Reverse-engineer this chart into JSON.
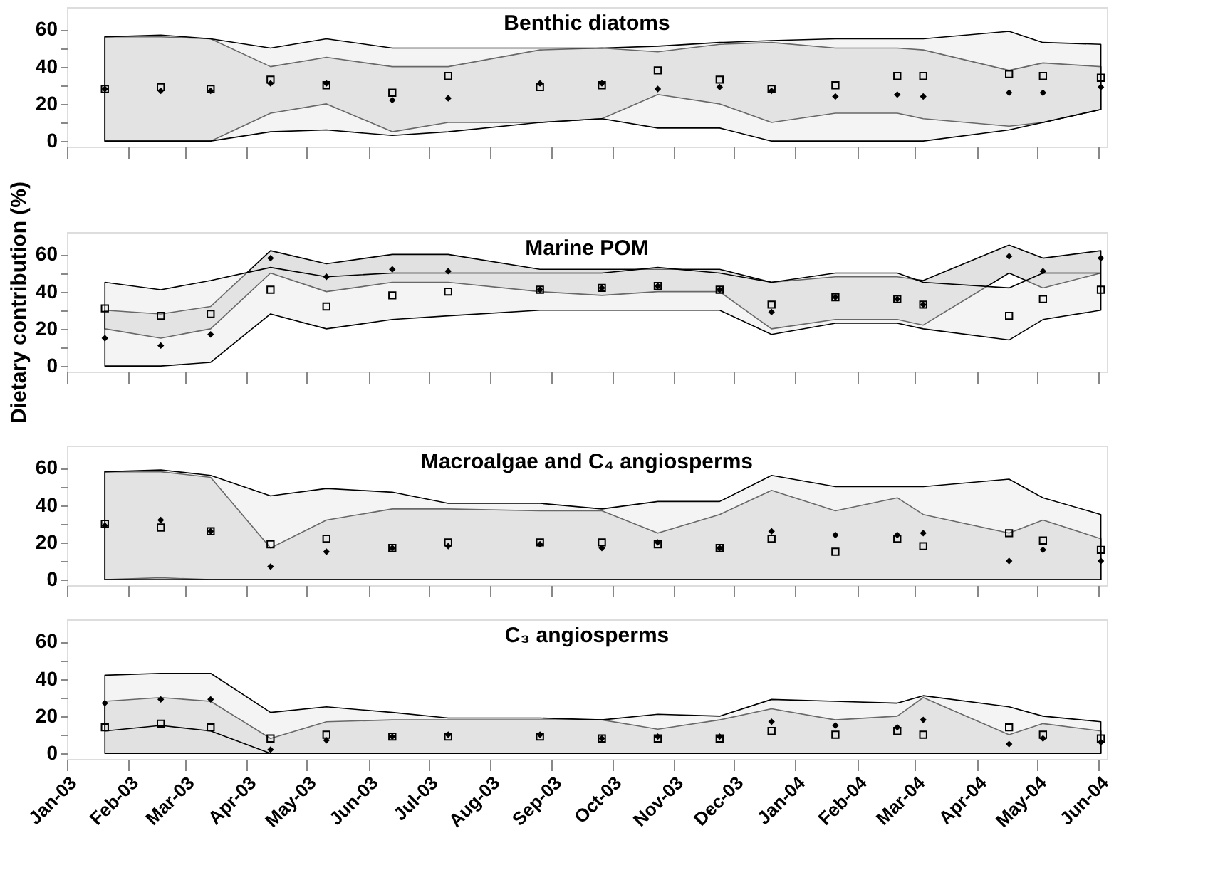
{
  "chart_data": [
    {
      "type": "scatter",
      "title": "Benthic diatoms",
      "x": [
        "2003-01-20",
        "2003-02-17",
        "2003-03-14",
        "2003-04-13",
        "2003-05-11",
        "2003-06-13",
        "2003-07-11",
        "2003-08-26",
        "2003-09-26",
        "2003-10-24",
        "2003-11-24",
        "2003-12-20",
        "2004-01-21",
        "2004-02-21",
        "2004-03-05",
        "2004-04-17",
        "2004-05-04",
        "2004-06-02"
      ],
      "xlim": [
        "2003-01-01",
        "2004-06-05"
      ],
      "xticks": [
        {
          "value": "2003-01-01",
          "label": null
        },
        {
          "value": "2003-02-01",
          "label": null
        },
        {
          "value": "2003-03-01",
          "label": null
        },
        {
          "value": "2003-04-01",
          "label": null
        },
        {
          "value": "2003-05-01",
          "label": null
        },
        {
          "value": "2003-06-01",
          "label": null
        },
        {
          "value": "2003-07-01",
          "label": null
        },
        {
          "value": "2003-08-01",
          "label": null
        },
        {
          "value": "2003-09-01",
          "label": null
        },
        {
          "value": "2003-10-01",
          "label": null
        },
        {
          "value": "2003-11-01",
          "label": null
        },
        {
          "value": "2003-12-01",
          "label": null
        },
        {
          "value": "2004-01-01",
          "label": null
        },
        {
          "value": "2004-02-01",
          "label": null
        },
        {
          "value": "2004-03-01",
          "label": null
        },
        {
          "value": "2004-04-01",
          "label": null
        },
        {
          "value": "2004-05-01",
          "label": null
        },
        {
          "value": "2004-06-01",
          "label": null
        }
      ],
      "ylim": [
        -3,
        72
      ],
      "yticks": [
        0,
        {
          "value": 10,
          "label": null
        },
        20,
        {
          "value": 30,
          "label": null
        },
        40,
        {
          "value": 50,
          "label": null
        },
        60
      ],
      "tick_labels": "y",
      "grid": false,
      "series": [
        {
          "color": "#000000",
          "marker": "diamond",
          "values": [
            28,
            27,
            27,
            31,
            31,
            22,
            23,
            31,
            31,
            28,
            29,
            27,
            24,
            25,
            24,
            26,
            26,
            29
          ],
          "lower": [
            0,
            0,
            0,
            15,
            20,
            5,
            10,
            10,
            12,
            25,
            20,
            10,
            15,
            15,
            12,
            8,
            10,
            17
          ],
          "upper": [
            56,
            56,
            55,
            40,
            45,
            40,
            40,
            49,
            50,
            48,
            52,
            53,
            50,
            50,
            49,
            38,
            42,
            40
          ]
        },
        {
          "color": "#000000",
          "marker": "square",
          "values": [
            28,
            29,
            28,
            33,
            30,
            26,
            35,
            29,
            30,
            38,
            33,
            28,
            30,
            35,
            35,
            36,
            35,
            34
          ],
          "lower": [
            0,
            0,
            0,
            5,
            6,
            3,
            5,
            10,
            12,
            7,
            7,
            0,
            0,
            0,
            0,
            6,
            10,
            17
          ],
          "upper": [
            56,
            57,
            55,
            50,
            55,
            50,
            50,
            50,
            50,
            51,
            53,
            54,
            55,
            55,
            55,
            59,
            53,
            52
          ]
        }
      ]
    },
    {
      "type": "scatter",
      "title": "Marine POM",
      "ylabel": "Dietary contribution (%)",
      "x": [
        "2003-01-20",
        "2003-02-17",
        "2003-03-14",
        "2003-04-13",
        "2003-05-11",
        "2003-06-13",
        "2003-07-11",
        "2003-08-26",
        "2003-09-26",
        "2003-10-24",
        "2003-11-24",
        "2003-12-20",
        "2004-01-21",
        "2004-02-21",
        "2004-03-05",
        "2004-04-17",
        "2004-05-04",
        "2004-06-02"
      ],
      "xlim": [
        "2003-01-01",
        "2004-06-05"
      ],
      "xticks": [
        {
          "value": "2003-01-01",
          "label": null
        },
        {
          "value": "2003-02-01",
          "label": null
        },
        {
          "value": "2003-03-01",
          "label": null
        },
        {
          "value": "2003-04-01",
          "label": null
        },
        {
          "value": "2003-05-01",
          "label": null
        },
        {
          "value": "2003-06-01",
          "label": null
        },
        {
          "value": "2003-07-01",
          "label": null
        },
        {
          "value": "2003-08-01",
          "label": null
        },
        {
          "value": "2003-09-01",
          "label": null
        },
        {
          "value": "2003-10-01",
          "label": null
        },
        {
          "value": "2003-11-01",
          "label": null
        },
        {
          "value": "2003-12-01",
          "label": null
        },
        {
          "value": "2004-01-01",
          "label": null
        },
        {
          "value": "2004-02-01",
          "label": null
        },
        {
          "value": "2004-03-01",
          "label": null
        },
        {
          "value": "2004-04-01",
          "label": null
        },
        {
          "value": "2004-05-01",
          "label": null
        },
        {
          "value": "2004-06-01",
          "label": null
        }
      ],
      "ylim": [
        -3,
        72
      ],
      "yticks": [
        0,
        {
          "value": 10,
          "label": null
        },
        20,
        {
          "value": 30,
          "label": null
        },
        40,
        {
          "value": 50,
          "label": null
        },
        60
      ],
      "tick_labels": "y",
      "grid": false,
      "series": [
        {
          "color": "#000000",
          "marker": "diamond",
          "values": [
            15,
            11,
            17,
            58,
            48,
            52,
            51,
            41,
            42,
            43,
            41,
            29,
            37,
            36,
            33,
            59,
            51,
            58
          ],
          "lower": [
            20,
            15,
            20,
            50,
            40,
            45,
            45,
            40,
            38,
            40,
            40,
            20,
            25,
            25,
            22,
            50,
            42,
            50
          ],
          "upper": [
            30,
            28,
            32,
            62,
            55,
            60,
            60,
            52,
            52,
            52,
            52,
            45,
            48,
            48,
            46,
            65,
            58,
            62
          ]
        },
        {
          "color": "#000000",
          "marker": "square",
          "values": [
            31,
            27,
            28,
            41,
            32,
            38,
            40,
            41,
            42,
            43,
            41,
            33,
            37,
            36,
            33,
            27,
            36,
            41
          ],
          "lower": [
            0,
            0,
            2,
            28,
            20,
            25,
            27,
            30,
            30,
            30,
            30,
            17,
            23,
            23,
            20,
            14,
            25,
            30
          ],
          "upper": [
            45,
            41,
            46,
            53,
            48,
            50,
            50,
            50,
            50,
            53,
            50,
            45,
            50,
            50,
            45,
            42,
            50,
            50
          ]
        }
      ]
    },
    {
      "type": "scatter",
      "title": "Macroalgae and C₄ angiosperms",
      "x": [
        "2003-01-20",
        "2003-02-17",
        "2003-03-14",
        "2003-04-13",
        "2003-05-11",
        "2003-06-13",
        "2003-07-11",
        "2003-08-26",
        "2003-09-26",
        "2003-10-24",
        "2003-11-24",
        "2003-12-20",
        "2004-01-21",
        "2004-02-21",
        "2004-03-05",
        "2004-04-17",
        "2004-05-04",
        "2004-06-02"
      ],
      "xlim": [
        "2003-01-01",
        "2004-06-05"
      ],
      "xticks": [
        {
          "value": "2003-01-01",
          "label": null
        },
        {
          "value": "2003-02-01",
          "label": null
        },
        {
          "value": "2003-03-01",
          "label": null
        },
        {
          "value": "2003-04-01",
          "label": null
        },
        {
          "value": "2003-05-01",
          "label": null
        },
        {
          "value": "2003-06-01",
          "label": null
        },
        {
          "value": "2003-07-01",
          "label": null
        },
        {
          "value": "2003-08-01",
          "label": null
        },
        {
          "value": "2003-09-01",
          "label": null
        },
        {
          "value": "2003-10-01",
          "label": null
        },
        {
          "value": "2003-11-01",
          "label": null
        },
        {
          "value": "2003-12-01",
          "label": null
        },
        {
          "value": "2004-01-01",
          "label": null
        },
        {
          "value": "2004-02-01",
          "label": null
        },
        {
          "value": "2004-03-01",
          "label": null
        },
        {
          "value": "2004-04-01",
          "label": null
        },
        {
          "value": "2004-05-01",
          "label": null
        },
        {
          "value": "2004-06-01",
          "label": null
        }
      ],
      "ylim": [
        -3,
        72
      ],
      "yticks": [
        0,
        {
          "value": 10,
          "label": null
        },
        20,
        {
          "value": 30,
          "label": null
        },
        40,
        {
          "value": 50,
          "label": null
        },
        60
      ],
      "tick_labels": "y",
      "grid": false,
      "series": [
        {
          "color": "#000000",
          "marker": "diamond",
          "values": [
            29,
            32,
            26,
            7,
            15,
            17,
            18,
            19,
            17,
            20,
            17,
            26,
            24,
            24,
            25,
            10,
            16,
            10
          ],
          "lower": [
            0,
            1,
            0,
            0,
            0,
            0,
            0,
            0,
            0,
            0,
            0,
            0,
            0,
            0,
            0,
            0,
            0,
            0
          ],
          "upper": [
            58,
            58,
            55,
            17,
            32,
            38,
            38,
            37,
            37,
            25,
            35,
            48,
            37,
            44,
            35,
            25,
            32,
            22
          ]
        },
        {
          "color": "#000000",
          "marker": "square",
          "values": [
            30,
            28,
            26,
            19,
            22,
            17,
            20,
            20,
            20,
            19,
            17,
            22,
            15,
            22,
            18,
            25,
            21,
            16
          ],
          "lower": [
            0,
            0,
            0,
            0,
            0,
            0,
            0,
            0,
            0,
            0,
            0,
            0,
            0,
            0,
            0,
            0,
            0,
            0
          ],
          "upper": [
            58,
            59,
            56,
            45,
            49,
            47,
            41,
            41,
            38,
            42,
            42,
            56,
            50,
            50,
            50,
            54,
            44,
            35
          ]
        }
      ]
    },
    {
      "type": "scatter",
      "title": "C₃ angiosperms",
      "x": [
        "2003-01-20",
        "2003-02-17",
        "2003-03-14",
        "2003-04-13",
        "2003-05-11",
        "2003-06-13",
        "2003-07-11",
        "2003-08-26",
        "2003-09-26",
        "2003-10-24",
        "2003-11-24",
        "2003-12-20",
        "2004-01-21",
        "2004-02-21",
        "2004-03-05",
        "2004-04-17",
        "2004-05-04",
        "2004-06-02"
      ],
      "xlim": [
        "2003-01-01",
        "2004-06-05"
      ],
      "xticks": [
        {
          "value": "2003-01-01",
          "label": "Jan-03"
        },
        {
          "value": "2003-02-01",
          "label": "Feb-03"
        },
        {
          "value": "2003-03-01",
          "label": "Mar-03"
        },
        {
          "value": "2003-04-01",
          "label": "Apr-03"
        },
        {
          "value": "2003-05-01",
          "label": "May-03"
        },
        {
          "value": "2003-06-01",
          "label": "Jun-03"
        },
        {
          "value": "2003-07-01",
          "label": "Jul-03"
        },
        {
          "value": "2003-08-01",
          "label": "Aug-03"
        },
        {
          "value": "2003-09-01",
          "label": "Sep-03"
        },
        {
          "value": "2003-10-01",
          "label": "Oct-03"
        },
        {
          "value": "2003-11-01",
          "label": "Nov-03"
        },
        {
          "value": "2003-12-01",
          "label": "Dec-03"
        },
        {
          "value": "2004-01-01",
          "label": "Jan-04"
        },
        {
          "value": "2004-02-01",
          "label": "Feb-04"
        },
        {
          "value": "2004-03-01",
          "label": "Mar-04"
        },
        {
          "value": "2004-04-01",
          "label": "Apr-04"
        },
        {
          "value": "2004-05-01",
          "label": "May-04"
        },
        {
          "value": "2004-06-01",
          "label": "Jun-04"
        }
      ],
      "ylim": [
        -3,
        72
      ],
      "yticks": [
        0,
        {
          "value": 10,
          "label": null
        },
        20,
        {
          "value": 30,
          "label": null
        },
        40,
        {
          "value": 50,
          "label": null
        },
        60
      ],
      "grid": false,
      "series": [
        {
          "color": "#000000",
          "marker": "diamond",
          "values": [
            27,
            29,
            29,
            2,
            7,
            9,
            10,
            10,
            8,
            9,
            9,
            17,
            15,
            14,
            18,
            5,
            8,
            6
          ],
          "lower": [
            0,
            0,
            0,
            0,
            0,
            0,
            0,
            0,
            0,
            0,
            0,
            0,
            0,
            0,
            0,
            0,
            0,
            0
          ],
          "upper": [
            28,
            30,
            28,
            8,
            17,
            18,
            18,
            18,
            18,
            13,
            18,
            24,
            18,
            20,
            30,
            10,
            16,
            12
          ]
        },
        {
          "color": "#000000",
          "marker": "square",
          "values": [
            14,
            16,
            14,
            8,
            10,
            9,
            9,
            9,
            8,
            8,
            8,
            12,
            10,
            12,
            10,
            14,
            10,
            8
          ],
          "lower": [
            12,
            15,
            12,
            0,
            0,
            0,
            0,
            0,
            0,
            0,
            0,
            0,
            0,
            0,
            0,
            0,
            0,
            0
          ],
          "upper": [
            42,
            43,
            43,
            22,
            25,
            22,
            19,
            19,
            18,
            21,
            20,
            29,
            28,
            27,
            31,
            25,
            20,
            17
          ]
        }
      ]
    }
  ]
}
